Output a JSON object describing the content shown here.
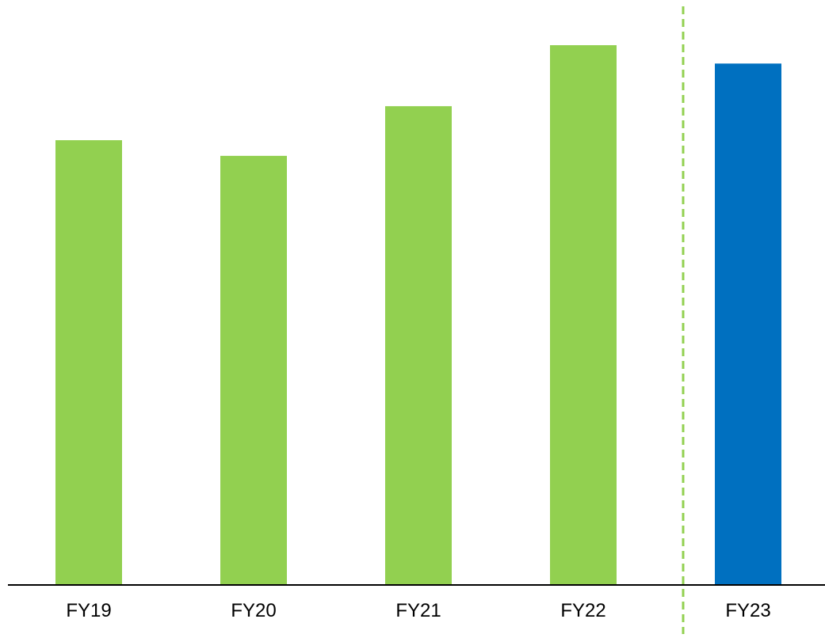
{
  "chart_data": {
    "type": "bar",
    "categories": [
      "FY19",
      "FY20",
      "FY21",
      "FY22",
      "FY23"
    ],
    "values": [
      82.4,
      79.5,
      88.7,
      100,
      96.6
    ],
    "ylim": [
      0,
      105
    ],
    "title": "",
    "xlabel": "",
    "ylabel": "",
    "grid": false,
    "legend": "none",
    "divider_after_category": "FY22",
    "colors": {
      "history": "#92D050",
      "forecast": "#0070C0",
      "divider": "#92D050",
      "axis": "#000000"
    },
    "bar_colors": [
      "#92D050",
      "#92D050",
      "#92D050",
      "#92D050",
      "#0070C0"
    ]
  }
}
